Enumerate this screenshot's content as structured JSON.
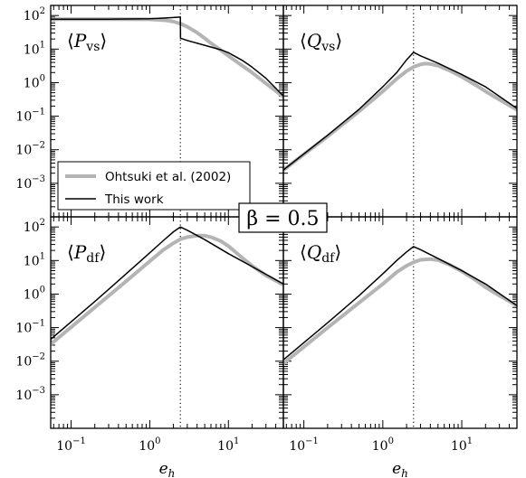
{
  "chart_data": {
    "type": "line",
    "x_scale": "log",
    "y_scale": "log",
    "xlim": [
      0.055,
      50
    ],
    "ylim": [
      0.0001,
      200
    ],
    "x_ticks": [
      {
        "value": 0.1,
        "base": "10",
        "exp": "−1"
      },
      {
        "value": 1,
        "base": "10",
        "exp": "0"
      },
      {
        "value": 10,
        "base": "10",
        "exp": "1"
      }
    ],
    "y_ticks": [
      {
        "value": 100,
        "base": "10",
        "exp": "2"
      },
      {
        "value": 10,
        "base": "10",
        "exp": "1"
      },
      {
        "value": 1,
        "base": "10",
        "exp": "0"
      },
      {
        "value": 0.1,
        "base": "10",
        "exp": "−1"
      },
      {
        "value": 0.01,
        "base": "10",
        "exp": "−2"
      },
      {
        "value": 0.001,
        "base": "10",
        "exp": "−3"
      }
    ],
    "vline_x": 2.45,
    "xlabel_main": "e",
    "xlabel_sub": "h",
    "annotation": {
      "main": "β = 0.5"
    },
    "legend": {
      "placement": "inside top-left panel, lower left",
      "entries": [
        {
          "label": "Ohtsuki et al. (2002)",
          "color": "#b4b4b4",
          "style": "thick"
        },
        {
          "label": "This work",
          "color": "#000000",
          "style": "thin"
        }
      ]
    },
    "panels": [
      {
        "id": "pvs",
        "label_main": "P",
        "label_sub": "vs",
        "series": [
          {
            "name": "Ohtsuki et al. (2002)",
            "color": "#b4b4b4",
            "x": [
              0.055,
              0.3,
              1.0,
              1.6,
              2.0,
              2.5,
              3.0,
              4.0,
              5.0,
              6.0,
              8.0,
              10,
              15,
              20,
              30,
              50
            ],
            "y": [
              78,
              78,
              77,
              72,
              66,
              56,
              46,
              31,
              21,
              15,
              9.3,
              6.3,
              3.2,
              2.0,
              0.95,
              0.38
            ]
          },
          {
            "name": "This work",
            "color": "#000000",
            "x": [
              0.055,
              0.3,
              1.0,
              1.5,
              2.0,
              2.45,
              2.46,
              3.0,
              5.0,
              8.0,
              10,
              15,
              20,
              30,
              50
            ],
            "y": [
              78,
              78,
              80,
              84,
              87,
              90,
              21,
              18,
              13,
              9.5,
              7.8,
              4.6,
              2.9,
              1.35,
              0.4
            ]
          }
        ]
      },
      {
        "id": "qvs",
        "label_main": "Q",
        "label_sub": "vs",
        "series": [
          {
            "name": "Ohtsuki et al. (2002)",
            "color": "#b4b4b4",
            "x": [
              0.055,
              0.2,
              0.5,
              1.0,
              1.5,
              2.0,
              2.5,
              3.0,
              3.5,
              4.0,
              5.0,
              7.0,
              10,
              15,
              20,
              30,
              50
            ],
            "y": [
              0.0025,
              0.025,
              0.14,
              0.55,
              1.3,
              2.2,
              3.0,
              3.5,
              3.7,
              3.6,
              3.2,
              2.3,
              1.5,
              0.85,
              0.55,
              0.31,
              0.155
            ]
          },
          {
            "name": "This work",
            "color": "#000000",
            "x": [
              0.055,
              0.2,
              0.5,
              1.0,
              1.5,
              2.0,
              2.45,
              3.0,
              5.0,
              10,
              20,
              50
            ],
            "y": [
              0.0025,
              0.027,
              0.16,
              0.75,
              2.0,
              4.8,
              8.0,
              6.3,
              3.8,
              1.75,
              0.75,
              0.17
            ]
          }
        ]
      },
      {
        "id": "pdf",
        "label_main": "P",
        "label_sub": "df",
        "series": [
          {
            "name": "Ohtsuki et al. (2002)",
            "color": "#b4b4b4",
            "x": [
              0.055,
              0.2,
              0.5,
              1.0,
              1.5,
              2.0,
              2.5,
              3.0,
              4.0,
              5.0,
              6.0,
              8.0,
              10,
              15,
              20,
              30,
              50
            ],
            "y": [
              0.032,
              0.4,
              2.4,
              9.5,
              21,
              33,
              44,
              50,
              55,
              55,
              50,
              38,
              27,
              12,
              7.0,
              3.6,
              1.9
            ]
          },
          {
            "name": "This work",
            "color": "#000000",
            "x": [
              0.055,
              0.2,
              0.5,
              1.0,
              1.5,
              2.0,
              2.45,
              3.0,
              5.0,
              10,
              20,
              50
            ],
            "y": [
              0.045,
              0.6,
              4.0,
              17,
              40,
              72,
              100,
              80,
              42,
              16,
              6.6,
              2.0
            ]
          }
        ]
      },
      {
        "id": "qdf",
        "label_main": "Q",
        "label_sub": "df",
        "series": [
          {
            "name": "Ohtsuki et al. (2002)",
            "color": "#b4b4b4",
            "x": [
              0.055,
              0.2,
              0.5,
              1.0,
              1.5,
              2.0,
              2.5,
              3.0,
              4.0,
              5.0,
              7.0,
              10,
              15,
              20,
              30,
              50
            ],
            "y": [
              0.0085,
              0.1,
              0.55,
              2.0,
              4.5,
              7.0,
              9.0,
              10.5,
              11.0,
              10.3,
              7.5,
              4.8,
              2.6,
              1.6,
              0.9,
              0.45
            ]
          },
          {
            "name": "This work",
            "color": "#000000",
            "x": [
              0.055,
              0.2,
              0.5,
              1.0,
              1.5,
              2.0,
              2.45,
              3.0,
              5.0,
              10,
              20,
              50
            ],
            "y": [
              0.011,
              0.14,
              0.9,
              4.0,
              10,
              18,
              26,
              21,
              11.5,
              5.0,
              2.0,
              0.45
            ]
          }
        ]
      }
    ]
  }
}
